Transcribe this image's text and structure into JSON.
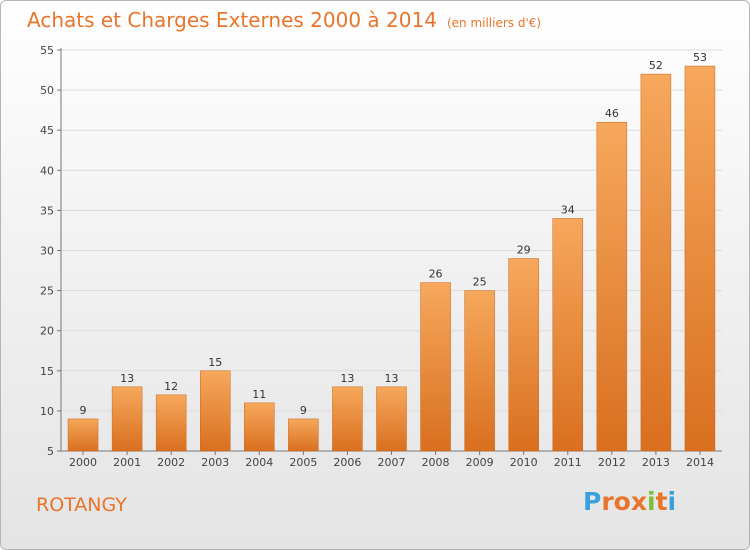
{
  "header": {
    "title": "Achats et Charges Externes 2000 à 2014",
    "unit": "(en milliers d'€)"
  },
  "footer": {
    "commune": "ROTANGY",
    "logo": [
      "P",
      "r",
      "o",
      "x",
      "i",
      "t",
      "i"
    ],
    "logo_colors": [
      "#3aa0dc",
      "#e8752b",
      "#e8752b",
      "#e8752b",
      "#7cbf3a",
      "#e8752b",
      "#3aa0dc"
    ]
  },
  "colors": {
    "accent": "#e8752b",
    "bar_light": "#f6a85c",
    "bar_dark": "#d96f1f",
    "bar_edge": "#c9681e"
  },
  "chart_data": {
    "type": "bar",
    "categories": [
      "2000",
      "2001",
      "2002",
      "2003",
      "2004",
      "2005",
      "2006",
      "2007",
      "2008",
      "2009",
      "2010",
      "2011",
      "2012",
      "2013",
      "2014"
    ],
    "values": [
      9,
      13,
      12,
      15,
      11,
      9,
      13,
      13,
      26,
      25,
      29,
      34,
      46,
      52,
      53
    ],
    "ylim": [
      5,
      55
    ],
    "yticks": [
      5,
      10,
      15,
      20,
      25,
      30,
      35,
      40,
      45,
      50,
      55
    ],
    "grid": true
  }
}
